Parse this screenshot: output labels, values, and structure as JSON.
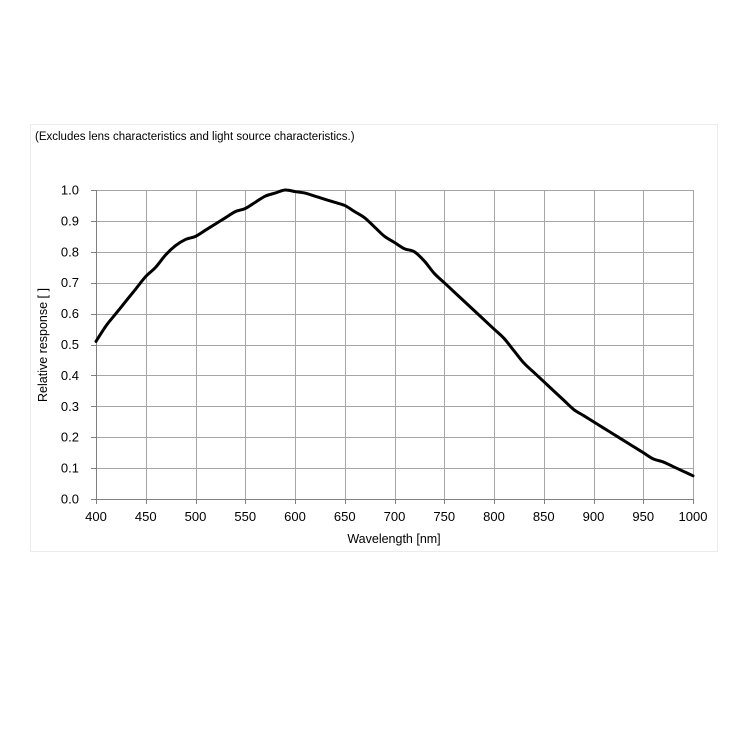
{
  "chart_data": {
    "type": "line",
    "annotation": "(Excludes lens characteristics and light source characteristics.)",
    "xlabel": "Wavelength [nm]",
    "ylabel": "Relative response [ ]",
    "xlim": [
      400,
      1000
    ],
    "ylim": [
      0,
      1.0
    ],
    "x_ticks": [
      "400",
      "450",
      "500",
      "550",
      "600",
      "650",
      "700",
      "750",
      "800",
      "850",
      "900",
      "950",
      "1000"
    ],
    "y_ticks": [
      "0.0",
      "0.1",
      "0.2",
      "0.3",
      "0.4",
      "0.5",
      "0.6",
      "0.7",
      "0.8",
      "0.9",
      "1.0"
    ],
    "x_tick_values": [
      400,
      450,
      500,
      550,
      600,
      650,
      700,
      750,
      800,
      850,
      900,
      950,
      1000
    ],
    "y_tick_values": [
      0,
      0.1,
      0.2,
      0.3,
      0.4,
      0.5,
      0.6,
      0.7,
      0.8,
      0.9,
      1.0
    ],
    "grid": true,
    "legend": "none",
    "line_color": "#000000",
    "grid_color": "#a6a6a6",
    "series": [
      {
        "x": [
          400,
          410,
          420,
          430,
          440,
          450,
          460,
          470,
          480,
          490,
          500,
          510,
          520,
          530,
          540,
          550,
          560,
          570,
          580,
          590,
          600,
          610,
          620,
          630,
          640,
          650,
          660,
          670,
          680,
          690,
          700,
          710,
          720,
          730,
          740,
          750,
          760,
          770,
          780,
          790,
          800,
          810,
          820,
          830,
          840,
          850,
          860,
          870,
          880,
          890,
          900,
          910,
          920,
          930,
          940,
          950,
          960,
          970,
          980,
          990,
          1000
        ],
        "values": [
          0.51,
          0.56,
          0.6,
          0.64,
          0.68,
          0.72,
          0.75,
          0.79,
          0.82,
          0.84,
          0.85,
          0.87,
          0.89,
          0.91,
          0.93,
          0.94,
          0.96,
          0.98,
          0.99,
          1.0,
          0.995,
          0.99,
          0.98,
          0.97,
          0.96,
          0.95,
          0.93,
          0.91,
          0.88,
          0.85,
          0.83,
          0.81,
          0.8,
          0.77,
          0.73,
          0.7,
          0.67,
          0.64,
          0.61,
          0.58,
          0.55,
          0.52,
          0.48,
          0.44,
          0.41,
          0.38,
          0.35,
          0.32,
          0.29,
          0.27,
          0.25,
          0.23,
          0.21,
          0.19,
          0.17,
          0.15,
          0.13,
          0.12,
          0.105,
          0.09,
          0.075
        ]
      }
    ]
  }
}
